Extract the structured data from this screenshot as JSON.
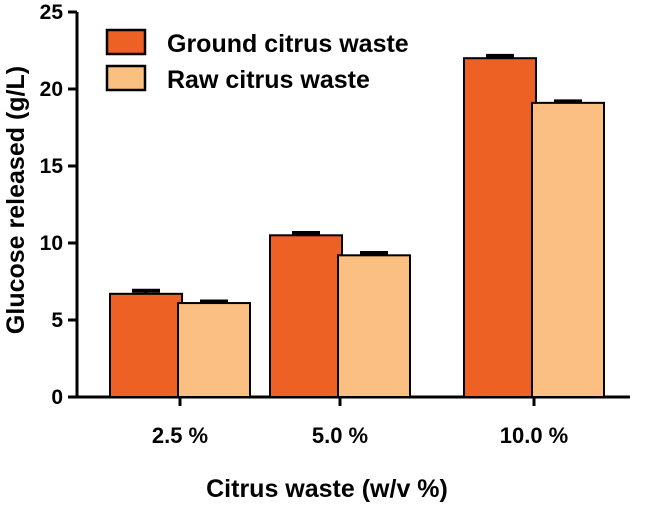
{
  "chart_data": {
    "type": "bar",
    "title": "",
    "xlabel": "Citrus waste (w/v %)",
    "ylabel": "Glucose released (g/L)",
    "categories": [
      "2.5 %",
      "5.0 %",
      "10.0 %"
    ],
    "ylim": [
      0,
      25
    ],
    "yticks": [
      0,
      5,
      10,
      15,
      20,
      25
    ],
    "series": [
      {
        "name": "Ground citrus waste",
        "color": "#ED6125",
        "values": [
          6.7,
          10.5,
          22.0
        ],
        "errors": [
          0.2,
          0.15,
          0.15
        ]
      },
      {
        "name": "Raw citrus waste",
        "color": "#FBBF82",
        "values": [
          6.1,
          9.2,
          19.1
        ],
        "errors": [
          0.1,
          0.15,
          0.1
        ]
      }
    ],
    "error_bars": true,
    "grid": false,
    "legend": "top-left"
  }
}
